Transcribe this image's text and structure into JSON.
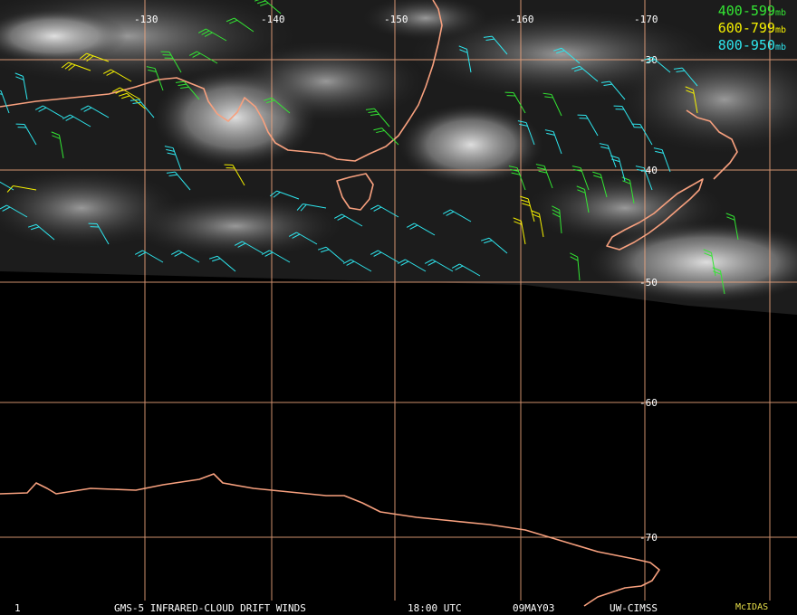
{
  "colors": {
    "grid": "#f3a880",
    "coast": "#f7a07e",
    "level_400_599": "#33e633",
    "level_600_799": "#f5f000",
    "level_800_950": "#2ee6ee",
    "label": "#ffffff",
    "mcidas": "#e8e04a"
  },
  "longitude_labels": [
    "-130",
    "-140",
    "-150",
    "-160",
    "-170"
  ],
  "latitude_labels": [
    "-30",
    "-40",
    "-50",
    "-60",
    "-70"
  ],
  "legend": [
    {
      "range": "400-599",
      "unit": "mb",
      "color_key": "level_400_599"
    },
    {
      "range": "600-799",
      "unit": "mb",
      "color_key": "level_600_799"
    },
    {
      "range": "800-950",
      "unit": "mb",
      "color_key": "level_800_950"
    }
  ],
  "footer": {
    "frame": "1",
    "title": "GMS-5 INFRARED-CLOUD DRIFT WINDS",
    "time": "18:00 UTC",
    "date": "09MAY03",
    "source": "UW-CIMSS",
    "brand": "McIDAS"
  }
}
